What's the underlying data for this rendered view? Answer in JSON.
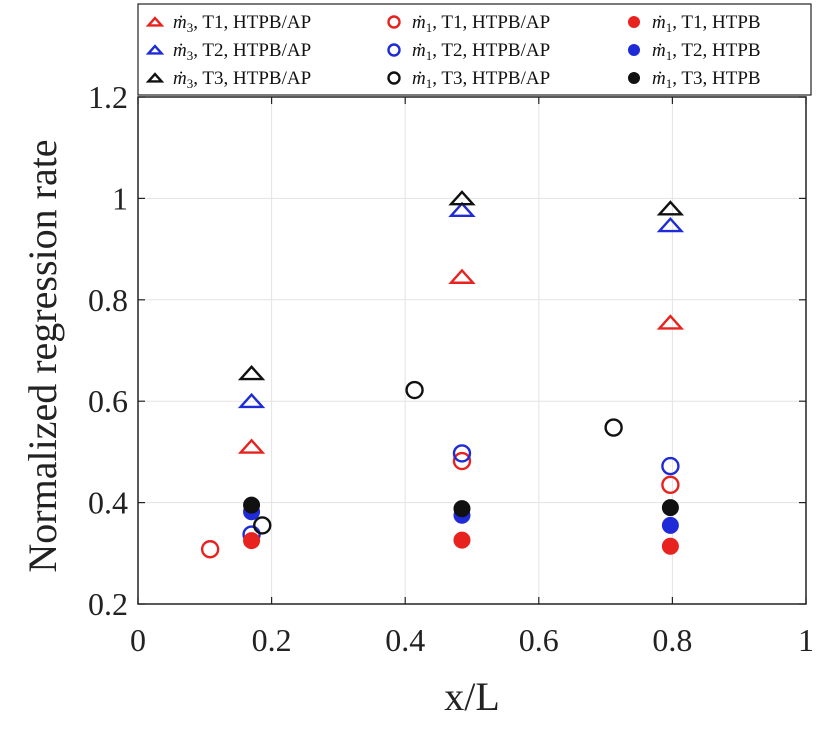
{
  "chart_data": {
    "type": "scatter",
    "xlabel": "x/L",
    "ylabel": "Normalized regression rate",
    "xlim": [
      0,
      1
    ],
    "ylim": [
      0.2,
      1.2
    ],
    "xticks": [
      "0",
      "0.2",
      "0.4",
      "0.6",
      "0.8",
      "1"
    ],
    "yticks": [
      "0.2",
      "0.4",
      "0.6",
      "0.8",
      "1",
      "1.2"
    ],
    "grid": true,
    "legend_position": "top",
    "series": [
      {
        "name": "ṁ3, T1, HTPB/AP",
        "sub": "3",
        "rest": ", T1, HTPB/AP",
        "marker": "triangle",
        "fill": "none",
        "color": "#e8231f",
        "points": [
          [
            0.17,
            0.51
          ],
          [
            0.485,
            0.845
          ],
          [
            0.797,
            0.755
          ]
        ]
      },
      {
        "name": "ṁ3, T2, HTPB/AP",
        "sub": "3",
        "rest": ", T2, HTPB/AP",
        "marker": "triangle",
        "fill": "none",
        "color": "#1f2bd6",
        "points": [
          [
            0.17,
            0.6
          ],
          [
            0.485,
            0.977
          ],
          [
            0.797,
            0.947
          ]
        ]
      },
      {
        "name": "ṁ3, T3, HTPB/AP",
        "sub": "3",
        "rest": ", T3, HTPB/AP",
        "marker": "triangle",
        "fill": "none",
        "color": "#111111",
        "points": [
          [
            0.17,
            0.655
          ],
          [
            0.485,
            1.0
          ],
          [
            0.797,
            0.98
          ]
        ]
      },
      {
        "name": "ṁ1, T1, HTPB/AP",
        "sub": "1",
        "rest": ", T1, HTPB/AP",
        "marker": "circle",
        "fill": "none",
        "color": "#e8231f",
        "points": [
          [
            0.108,
            0.308
          ],
          [
            0.485,
            0.482
          ],
          [
            0.797,
            0.435
          ]
        ]
      },
      {
        "name": "ṁ1, T2, HTPB/AP",
        "sub": "1",
        "rest": ", T2, HTPB/AP",
        "marker": "circle",
        "fill": "none",
        "color": "#1f2bd6",
        "points": [
          [
            0.17,
            0.337
          ],
          [
            0.485,
            0.497
          ],
          [
            0.797,
            0.472
          ]
        ]
      },
      {
        "name": "ṁ1, T3, HTPB/AP",
        "sub": "1",
        "rest": ", T3, HTPB/AP",
        "marker": "circle",
        "fill": "none",
        "color": "#111111",
        "points": [
          [
            0.186,
            0.355
          ],
          [
            0.414,
            0.622
          ],
          [
            0.712,
            0.548
          ]
        ]
      },
      {
        "name": "ṁ1, T1, HTPB",
        "sub": "1",
        "rest": ", T1, HTPB",
        "marker": "circle",
        "fill": "filled",
        "color": "#e8231f",
        "points": [
          [
            0.17,
            0.325
          ],
          [
            0.485,
            0.326
          ],
          [
            0.797,
            0.314
          ]
        ]
      },
      {
        "name": "ṁ1, T2, HTPB",
        "sub": "1",
        "rest": ", T2, HTPB",
        "marker": "circle",
        "fill": "filled",
        "color": "#1f2bd6",
        "points": [
          [
            0.17,
            0.382
          ],
          [
            0.485,
            0.375
          ],
          [
            0.797,
            0.355
          ]
        ]
      },
      {
        "name": "ṁ1, T3, HTPB",
        "sub": "1",
        "rest": ", T3, HTPB",
        "marker": "circle",
        "fill": "filled",
        "color": "#111111",
        "points": [
          [
            0.17,
            0.395
          ],
          [
            0.485,
            0.388
          ],
          [
            0.797,
            0.39
          ]
        ]
      }
    ]
  }
}
